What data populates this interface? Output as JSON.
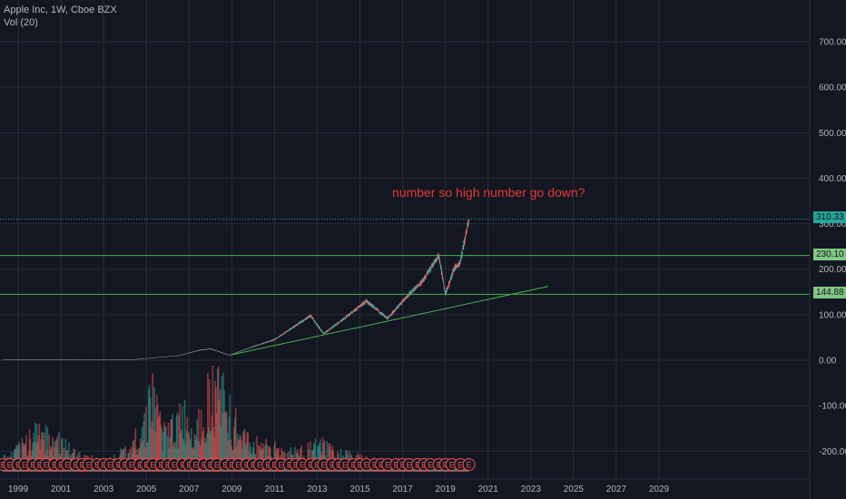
{
  "legend": {
    "title": "Apple Inc, 1W, Cboe BZX",
    "indicator": "Vol (20)"
  },
  "colors": {
    "background": "#131722",
    "grid": "#2a2e39",
    "up": "#26a69a",
    "down": "#ef5350",
    "hline": "#4caf50",
    "trend": "#4caf50",
    "annotation": "#e53935",
    "lastPrice": "#26a69a",
    "label_green": "#81c784",
    "earnings": "#ef5350"
  },
  "chart_data": {
    "type": "line",
    "title": "Apple Inc, 1W, Cboe BZX",
    "xlabel": "",
    "ylabel": "",
    "ylim": [
      -240,
      740
    ],
    "x_tick_labels": [
      "1999",
      "2001",
      "2003",
      "2005",
      "2007",
      "2009",
      "2011",
      "2013",
      "2015",
      "2017",
      "2019",
      "2021",
      "2023",
      "2025",
      "2027",
      "2029"
    ],
    "y_tick_labels": [
      "700.00",
      "600.00",
      "500.00",
      "400.00",
      "300.00",
      "200.00",
      "100.00",
      "0.00",
      "-100.00",
      "-200.00"
    ],
    "y_tick_values": [
      700,
      600,
      500,
      400,
      300,
      200,
      100,
      0,
      -100,
      -200
    ],
    "series": [
      {
        "values": [
          {
            "x": 1998.3,
            "y": 0.5
          },
          {
            "x": 2000.0,
            "y": 1.5
          },
          {
            "x": 2001.0,
            "y": 0.8
          },
          {
            "x": 2003.0,
            "y": 0.5
          },
          {
            "x": 2004.5,
            "y": 1.5
          },
          {
            "x": 2005.5,
            "y": 6
          },
          {
            "x": 2006.5,
            "y": 10
          },
          {
            "x": 2007.5,
            "y": 22
          },
          {
            "x": 2008.0,
            "y": 25
          },
          {
            "x": 2008.9,
            "y": 11
          },
          {
            "x": 2010.0,
            "y": 30
          },
          {
            "x": 2011.0,
            "y": 45
          },
          {
            "x": 2012.7,
            "y": 98
          },
          {
            "x": 2013.3,
            "y": 58
          },
          {
            "x": 2014.5,
            "y": 100
          },
          {
            "x": 2015.3,
            "y": 130
          },
          {
            "x": 2016.3,
            "y": 92
          },
          {
            "x": 2017.2,
            "y": 140
          },
          {
            "x": 2017.9,
            "y": 172
          },
          {
            "x": 2018.7,
            "y": 230
          },
          {
            "x": 2019.0,
            "y": 145
          },
          {
            "x": 2019.4,
            "y": 200
          },
          {
            "x": 2019.7,
            "y": 215
          },
          {
            "x": 2020.1,
            "y": 310
          }
        ]
      },
      {
        "name": "Vol (20)",
        "values": [
          {
            "x": 1998.6,
            "y": 0.15
          },
          {
            "x": 2000.0,
            "y": 0.5
          },
          {
            "x": 2000.9,
            "y": 0.35
          },
          {
            "x": 2001.6,
            "y": 0.2
          },
          {
            "x": 2003.1,
            "y": 0.1
          },
          {
            "x": 2004.2,
            "y": 0.25
          },
          {
            "x": 2004.9,
            "y": 0.55
          },
          {
            "x": 2005.2,
            "y": 0.9
          },
          {
            "x": 2005.9,
            "y": 0.4
          },
          {
            "x": 2006.6,
            "y": 0.65
          },
          {
            "x": 2007.3,
            "y": 0.5
          },
          {
            "x": 2008.0,
            "y": 0.95
          },
          {
            "x": 2008.4,
            "y": 1.0
          },
          {
            "x": 2009.0,
            "y": 0.6
          },
          {
            "x": 2009.7,
            "y": 0.35
          },
          {
            "x": 2010.6,
            "y": 0.3
          },
          {
            "x": 2011.6,
            "y": 0.2
          },
          {
            "x": 2012.4,
            "y": 0.25
          },
          {
            "x": 2013.2,
            "y": 0.3
          },
          {
            "x": 2014.1,
            "y": 0.2
          },
          {
            "x": 2015.1,
            "y": 0.15
          },
          {
            "x": 2016.0,
            "y": 0.12
          },
          {
            "x": 2017.1,
            "y": 0.1
          }
        ]
      }
    ],
    "horizontal_lines": [
      230.1,
      144.88
    ],
    "last_price_line": 310.33,
    "price_labels": [
      "310.33",
      "230.10",
      "144.88"
    ],
    "trendline": {
      "from": {
        "x": 2008.9,
        "y": 11
      },
      "to": {
        "x": 2023.8,
        "y": 162
      }
    },
    "annotations": [
      "number so high number go down?"
    ],
    "earnings_marker_label": "E",
    "earnings_markers": [
      1998.3,
      1998.6,
      1999.0,
      1999.3,
      1999.7,
      2000.0,
      2000.3,
      2000.7,
      2001.0,
      2001.3,
      2001.7,
      2002.0,
      2002.3,
      2002.7,
      2003.0,
      2003.3,
      2003.7,
      2004.0,
      2004.3,
      2004.7,
      2005.0,
      2005.3,
      2005.7,
      2006.0,
      2006.3,
      2006.7,
      2007.0,
      2007.3,
      2007.7,
      2008.0,
      2008.3,
      2008.7,
      2009.0,
      2009.3,
      2009.7,
      2010.0,
      2010.3,
      2010.7,
      2011.0,
      2011.3,
      2011.7,
      2012.0,
      2012.3,
      2012.7,
      2013.0,
      2013.3,
      2013.7,
      2014.0,
      2014.3,
      2014.7,
      2015.0,
      2015.3,
      2015.7,
      2016.0,
      2016.3,
      2016.7,
      2017.0,
      2017.3,
      2017.7,
      2018.0,
      2018.3,
      2018.7,
      2019.0,
      2019.3,
      2019.7,
      2020.1
    ],
    "grid": true,
    "legend_position": "top-left"
  }
}
